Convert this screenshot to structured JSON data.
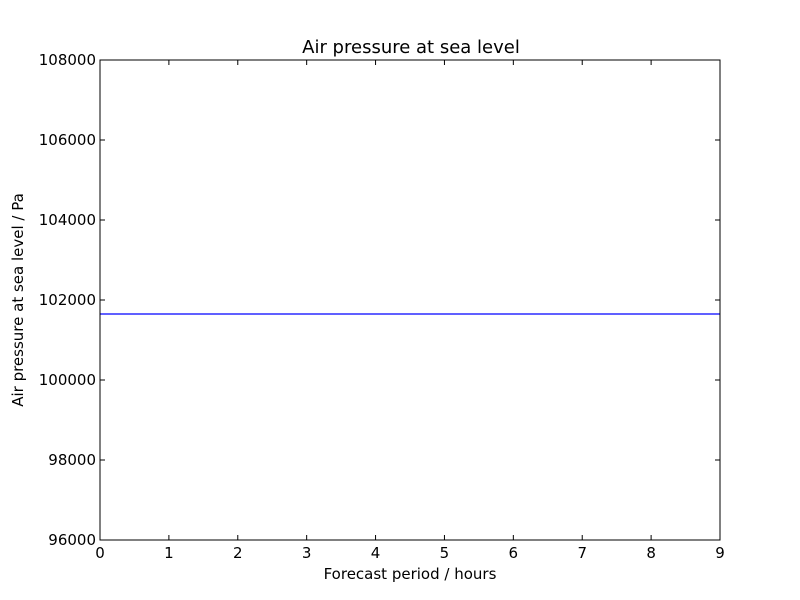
{
  "chart_data": {
    "type": "line",
    "title": "Air pressure at sea level",
    "xlabel": "Forecast period / hours",
    "ylabel": "Air pressure at sea level / Pa",
    "xlim": [
      0,
      9
    ],
    "ylim": [
      96000,
      108000
    ],
    "xticks": [
      0,
      1,
      2,
      3,
      4,
      5,
      6,
      7,
      8,
      9
    ],
    "yticks": [
      96000,
      98000,
      100000,
      102000,
      104000,
      106000,
      108000
    ],
    "grid": false,
    "series": [
      {
        "x": [
          0,
          9
        ],
        "values": [
          101650,
          101650
        ],
        "color": "#0000ff"
      }
    ]
  }
}
